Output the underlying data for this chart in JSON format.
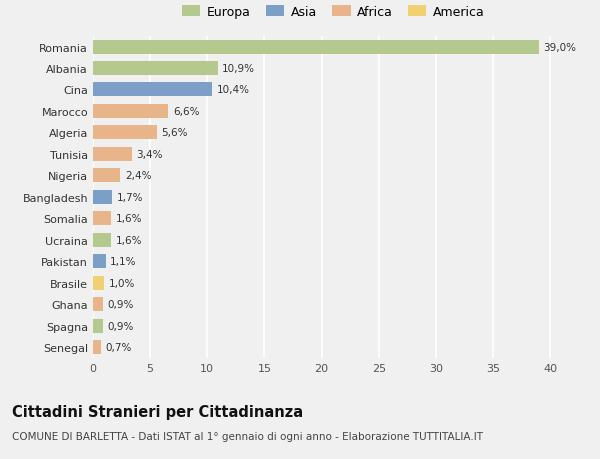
{
  "categories": [
    "Senegal",
    "Spagna",
    "Ghana",
    "Brasile",
    "Pakistan",
    "Ucraina",
    "Somalia",
    "Bangladesh",
    "Nigeria",
    "Tunisia",
    "Algeria",
    "Marocco",
    "Cina",
    "Albania",
    "Romania"
  ],
  "values": [
    0.7,
    0.9,
    0.9,
    1.0,
    1.1,
    1.6,
    1.6,
    1.7,
    2.4,
    3.4,
    5.6,
    6.6,
    10.4,
    10.9,
    39.0
  ],
  "labels": [
    "0,7%",
    "0,9%",
    "0,9%",
    "1,0%",
    "1,1%",
    "1,6%",
    "1,6%",
    "1,7%",
    "2,4%",
    "3,4%",
    "5,6%",
    "6,6%",
    "10,4%",
    "10,9%",
    "39,0%"
  ],
  "continents": [
    "Africa",
    "Europa",
    "Africa",
    "America",
    "Asia",
    "Europa",
    "Africa",
    "Asia",
    "Africa",
    "Africa",
    "Africa",
    "Africa",
    "Asia",
    "Europa",
    "Europa"
  ],
  "colors": {
    "Europa": "#b5c98e",
    "Asia": "#7b9fc7",
    "Africa": "#e8b48a",
    "America": "#f0d070"
  },
  "legend_order": [
    "Europa",
    "Asia",
    "Africa",
    "America"
  ],
  "xlim": [
    0,
    42
  ],
  "xticks": [
    0,
    5,
    10,
    15,
    20,
    25,
    30,
    35,
    40
  ],
  "title": "Cittadini Stranieri per Cittadinanza",
  "subtitle": "COMUNE DI BARLETTA - Dati ISTAT al 1° gennaio di ogni anno - Elaborazione TUTTITALIA.IT",
  "background_color": "#f0f0f0",
  "grid_color": "#ffffff",
  "bar_height": 0.65
}
